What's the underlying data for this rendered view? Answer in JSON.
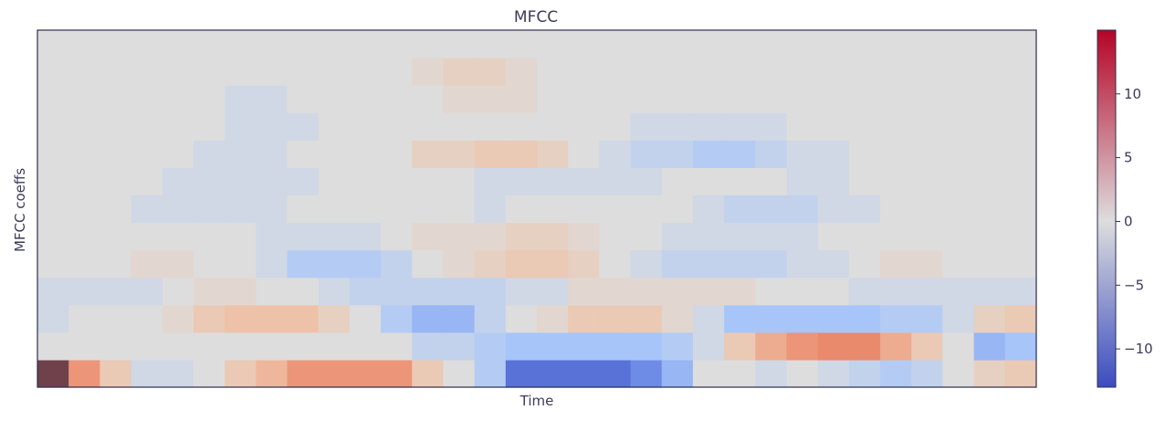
{
  "chart_data": {
    "type": "heatmap",
    "title": "MFCC",
    "xlabel": "Time",
    "ylabel": "MFCC coeffs",
    "colormap": "coolwarm",
    "vmin": -13,
    "vmax": 15,
    "colorbar": {
      "ticks": [
        10,
        5,
        0,
        -5,
        -10
      ],
      "tick_labels": [
        "10",
        "5",
        "0",
        "−5",
        "−10"
      ]
    },
    "n_coeffs": 13,
    "n_frames": 32,
    "values": [
      [
        15,
        8,
        3,
        -1,
        -1,
        0,
        3,
        5,
        8,
        8,
        8,
        8,
        3,
        0,
        -3,
        -10,
        -10,
        -10,
        -10,
        -8,
        -5,
        0,
        0,
        -1,
        0,
        -1,
        -2,
        -3,
        -2,
        0,
        2,
        3
      ],
      [
        0,
        0,
        0,
        0,
        0,
        0,
        0,
        0,
        0,
        0,
        0,
        0,
        -2,
        -2,
        -3,
        -4,
        -4,
        -4,
        -4,
        -4,
        -3,
        -1,
        3,
        6,
        8,
        9,
        9,
        6,
        3,
        0,
        -5,
        -4
      ],
      [
        -1,
        0,
        0,
        0,
        1,
        3,
        4,
        4,
        4,
        2,
        0,
        -3,
        -5,
        -5,
        -2,
        0,
        1,
        3,
        3,
        3,
        1,
        -1,
        -4,
        -4,
        -4,
        -4,
        -4,
        -3,
        -3,
        -1,
        2,
        3
      ],
      [
        -1,
        -1,
        -1,
        -1,
        0,
        1,
        1,
        0,
        0,
        -1,
        -2,
        -2,
        -2,
        -2,
        -2,
        -1,
        -1,
        1,
        1,
        1,
        1,
        1,
        1,
        0,
        0,
        0,
        -1,
        -1,
        -1,
        -1,
        -1,
        -1
      ],
      [
        0,
        0,
        0,
        1,
        1,
        0,
        0,
        -1,
        -3,
        -3,
        -3,
        -2,
        0,
        1,
        2,
        3,
        3,
        2,
        0,
        -1,
        -2,
        -2,
        -2,
        -2,
        -1,
        -1,
        0,
        1,
        1,
        0,
        0,
        0
      ],
      [
        0,
        0,
        0,
        0,
        0,
        0,
        0,
        -1,
        -1,
        -1,
        -1,
        0,
        1,
        1,
        1,
        2,
        2,
        1,
        0,
        0,
        -1,
        -1,
        -1,
        -1,
        -1,
        0,
        0,
        0,
        0,
        0,
        0,
        0
      ],
      [
        0,
        0,
        0,
        -1,
        -1,
        -1,
        -1,
        -1,
        0,
        0,
        0,
        0,
        0,
        0,
        -1,
        0,
        0,
        0,
        0,
        0,
        0,
        -1,
        -2,
        -2,
        -2,
        -1,
        -1,
        0,
        0,
        0,
        0,
        0
      ],
      [
        0,
        0,
        0,
        0,
        -1,
        -1,
        -1,
        -1,
        -1,
        0,
        0,
        0,
        0,
        0,
        -1,
        -1,
        -1,
        -1,
        -1,
        -1,
        0,
        0,
        0,
        0,
        -1,
        -1,
        0,
        0,
        0,
        0,
        0,
        0
      ],
      [
        0,
        0,
        0,
        0,
        0,
        -1,
        -1,
        -1,
        0,
        0,
        0,
        0,
        2,
        2,
        3,
        3,
        2,
        0,
        -1,
        -2,
        -2,
        -3,
        -3,
        -2,
        -1,
        -1,
        0,
        0,
        0,
        0,
        0,
        0
      ],
      [
        0,
        0,
        0,
        0,
        0,
        0,
        -1,
        -1,
        -1,
        0,
        0,
        0,
        0,
        0,
        0,
        0,
        0,
        0,
        0,
        -1,
        -1,
        -1,
        -1,
        -1,
        0,
        0,
        0,
        0,
        0,
        0,
        0,
        0
      ],
      [
        0,
        0,
        0,
        0,
        0,
        0,
        -1,
        -1,
        0,
        0,
        0,
        0,
        0,
        1,
        1,
        1,
        0,
        0,
        0,
        0,
        0,
        0,
        0,
        0,
        0,
        0,
        0,
        0,
        0,
        0,
        0,
        0
      ],
      [
        0,
        0,
        0,
        0,
        0,
        0,
        0,
        0,
        0,
        0,
        0,
        0,
        1,
        2,
        2,
        1,
        0,
        0,
        0,
        0,
        0,
        0,
        0,
        0,
        0,
        0,
        0,
        0,
        0,
        0,
        0,
        0
      ],
      [
        0,
        0,
        0,
        0,
        0,
        0,
        0,
        0,
        0,
        0,
        0,
        0,
        0,
        0,
        0,
        0,
        0,
        0,
        0,
        0,
        0,
        0,
        0,
        0,
        0,
        0,
        0,
        0,
        0,
        0,
        0,
        0
      ]
    ]
  }
}
